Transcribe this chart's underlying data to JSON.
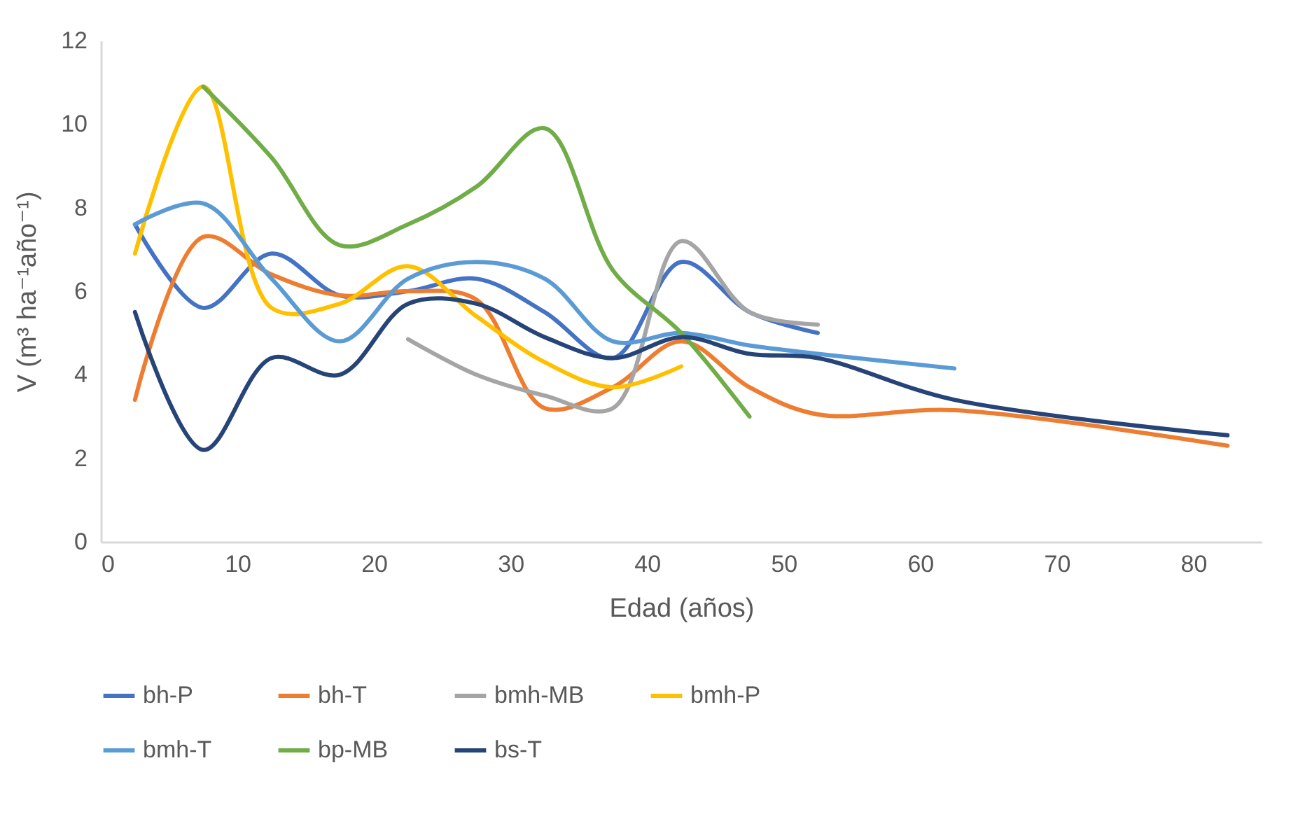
{
  "chart_data": {
    "type": "line",
    "xlabel": "Edad (años)",
    "ylabel": "V (m³ ha⁻¹año⁻¹)",
    "xlim": [
      0,
      85
    ],
    "xticks": [
      0,
      10,
      20,
      30,
      40,
      50,
      60,
      70,
      80
    ],
    "ylim": [
      0,
      12
    ],
    "yticks": [
      0,
      2,
      4,
      6,
      8,
      10,
      12
    ],
    "grid": false,
    "legend": "bottom",
    "line_style": "solid",
    "marker": "none",
    "series": [
      {
        "name": "bh-P",
        "color": "#4472c4",
        "x": [
          2.5,
          7.5,
          12.5,
          17.5,
          22.5,
          27.5,
          32.5,
          37.5,
          42.5,
          47.5,
          52.5
        ],
        "values": [
          7.6,
          5.6,
          6.9,
          5.9,
          6.0,
          6.3,
          5.5,
          4.4,
          6.7,
          5.5,
          5.0
        ]
      },
      {
        "name": "bh-T",
        "color": "#ed7d31",
        "x": [
          2.5,
          7.5,
          12.5,
          17.5,
          22.5,
          27.5,
          32.5,
          37.5,
          42.5,
          47.5,
          52.5,
          62.5,
          82.5
        ],
        "values": [
          3.4,
          7.3,
          6.4,
          5.9,
          6.0,
          5.8,
          3.2,
          3.7,
          4.8,
          3.7,
          3.05,
          3.15,
          2.3
        ]
      },
      {
        "name": "bmh-MB",
        "color": "#a5a5a5",
        "x": [
          22.5,
          27.5,
          32.5,
          37.5,
          42.5,
          47.5,
          52.5
        ],
        "values": [
          4.85,
          4.0,
          3.5,
          3.2,
          7.2,
          5.5,
          5.2
        ]
      },
      {
        "name": "bmh-P",
        "color": "#ffc000",
        "x": [
          2.5,
          7.5,
          12.5,
          17.5,
          22.5,
          27.5,
          32.5,
          37.5,
          42.5
        ],
        "values": [
          6.9,
          10.9,
          5.6,
          5.7,
          6.6,
          5.4,
          4.3,
          3.7,
          4.2
        ]
      },
      {
        "name": "bmh-T",
        "color": "#5b9bd5",
        "x": [
          2.5,
          7.5,
          12.5,
          17.5,
          22.5,
          27.5,
          32.5,
          37.5,
          42.5,
          47.5,
          52.5,
          62.5
        ],
        "values": [
          7.6,
          8.1,
          6.3,
          4.8,
          6.3,
          6.7,
          6.3,
          4.8,
          5.0,
          4.7,
          4.5,
          4.15
        ]
      },
      {
        "name": "bp-MB",
        "color": "#70ad47",
        "x": [
          7.5,
          12.5,
          17.5,
          22.5,
          27.5,
          32.5,
          37.5,
          42.5,
          47.5
        ],
        "values": [
          10.9,
          9.2,
          7.1,
          7.6,
          8.5,
          9.9,
          6.5,
          5.0,
          3.0
        ]
      },
      {
        "name": "bs-T",
        "color": "#264478",
        "x": [
          2.5,
          7.5,
          12.5,
          17.5,
          22.5,
          27.5,
          32.5,
          37.5,
          42.5,
          47.5,
          52.5,
          62.5,
          82.5
        ],
        "values": [
          5.5,
          2.2,
          4.4,
          4.0,
          5.7,
          5.7,
          4.9,
          4.4,
          4.9,
          4.5,
          4.4,
          3.4,
          2.55
        ]
      }
    ]
  }
}
